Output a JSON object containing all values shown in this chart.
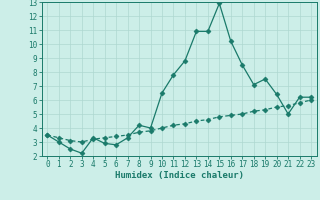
{
  "xlabel": "Humidex (Indice chaleur)",
  "line1_x": [
    0,
    1,
    2,
    3,
    4,
    5,
    6,
    7,
    8,
    9,
    10,
    11,
    12,
    13,
    14,
    15,
    16,
    17,
    18,
    19,
    20,
    21,
    22,
    23
  ],
  "line1_y": [
    3.5,
    3.0,
    2.5,
    2.2,
    3.3,
    2.9,
    2.8,
    3.3,
    4.2,
    4.0,
    6.5,
    7.8,
    8.8,
    10.9,
    10.9,
    12.9,
    10.2,
    8.5,
    7.1,
    7.5,
    6.4,
    5.0,
    6.2,
    6.2
  ],
  "line2_x": [
    0,
    1,
    2,
    3,
    4,
    5,
    6,
    7,
    8,
    9,
    10,
    11,
    12,
    13,
    14,
    15,
    16,
    17,
    18,
    19,
    20,
    21,
    22,
    23
  ],
  "line2_y": [
    3.5,
    3.3,
    3.1,
    3.0,
    3.2,
    3.3,
    3.4,
    3.5,
    3.7,
    3.8,
    4.0,
    4.2,
    4.3,
    4.5,
    4.6,
    4.8,
    4.9,
    5.0,
    5.2,
    5.3,
    5.5,
    5.6,
    5.8,
    6.0
  ],
  "line_color": "#1a7a6a",
  "bg_color": "#cceee8",
  "grid_color": "#aed8d0",
  "ylim": [
    2,
    13
  ],
  "xlim": [
    -0.5,
    23.5
  ],
  "yticks": [
    2,
    3,
    4,
    5,
    6,
    7,
    8,
    9,
    10,
    11,
    12,
    13
  ],
  "xticks": [
    0,
    1,
    2,
    3,
    4,
    5,
    6,
    7,
    8,
    9,
    10,
    11,
    12,
    13,
    14,
    15,
    16,
    17,
    18,
    19,
    20,
    21,
    22,
    23
  ],
  "marker": "D",
  "markersize": 2.5,
  "linewidth": 0.9,
  "tick_fontsize": 5.5,
  "xlabel_fontsize": 6.5
}
